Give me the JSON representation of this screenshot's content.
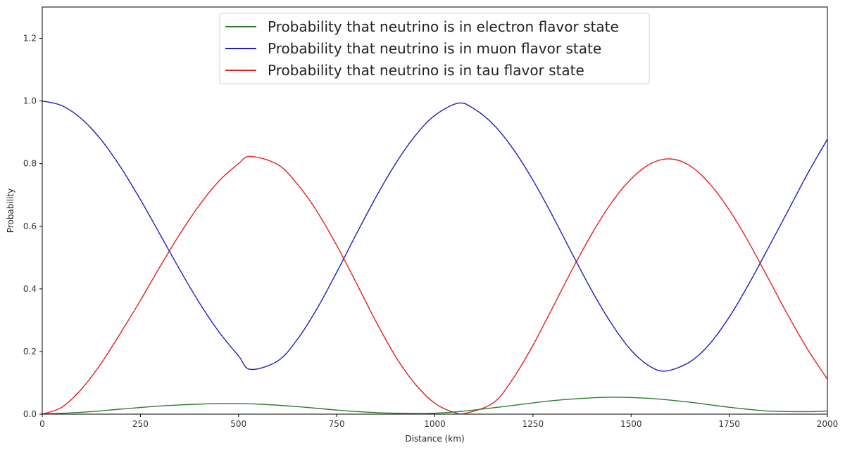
{
  "chart_data": {
    "type": "line",
    "title": "",
    "xlabel": "Distance (km)",
    "ylabel": "Probability",
    "xlim": [
      0,
      2000
    ],
    "ylim": [
      0,
      1.3
    ],
    "xticks": [
      0,
      250,
      500,
      750,
      1000,
      1250,
      1500,
      1750,
      2000
    ],
    "yticks": [
      0.0,
      0.2,
      0.4,
      0.6,
      0.8,
      1.0,
      1.2
    ],
    "ytick_labels": [
      "0.0",
      "0.2",
      "0.4",
      "0.6",
      "0.8",
      "1.0",
      "1.2"
    ],
    "grid": false,
    "legend_position": "top-center",
    "series": [
      {
        "name": "Probability that neutrino is in electron flavor state",
        "color": "#2e7d32",
        "x": [
          0,
          100,
          200,
          300,
          400,
          475,
          550,
          650,
          750,
          850,
          950,
          1000,
          1050,
          1100,
          1200,
          1300,
          1400,
          1460,
          1550,
          1650,
          1750,
          1850,
          1950,
          2000
        ],
        "y": [
          0.0,
          0.006,
          0.016,
          0.026,
          0.032,
          0.034,
          0.032,
          0.024,
          0.013,
          0.005,
          0.002,
          0.003,
          0.007,
          0.013,
          0.028,
          0.043,
          0.052,
          0.054,
          0.05,
          0.038,
          0.022,
          0.01,
          0.008,
          0.01
        ]
      },
      {
        "name": "Probability that neutrino is in muon flavor state",
        "color": "#1f1fbf",
        "x": [
          0,
          50,
          100,
          150,
          200,
          250,
          300,
          350,
          400,
          450,
          500,
          530,
          600,
          650,
          700,
          750,
          800,
          850,
          900,
          950,
          1000,
          1060,
          1100,
          1150,
          1200,
          1250,
          1300,
          1350,
          1400,
          1450,
          1500,
          1550,
          1590,
          1650,
          1700,
          1750,
          1800,
          1850,
          1900,
          1950,
          2000
        ],
        "y": [
          1.0,
          0.985,
          0.943,
          0.876,
          0.788,
          0.685,
          0.574,
          0.462,
          0.356,
          0.263,
          0.186,
          0.143,
          0.17,
          0.239,
          0.337,
          0.453,
          0.575,
          0.693,
          0.8,
          0.889,
          0.954,
          0.993,
          0.975,
          0.924,
          0.846,
          0.747,
          0.633,
          0.512,
          0.394,
          0.289,
          0.204,
          0.151,
          0.138,
          0.167,
          0.224,
          0.31,
          0.416,
          0.532,
          0.65,
          0.769,
          0.878
        ]
      },
      {
        "name": "Probability that neutrino is in tau flavor state",
        "color": "#e02020",
        "x": [
          0,
          50,
          100,
          150,
          200,
          250,
          300,
          350,
          400,
          450,
          500,
          530,
          600,
          650,
          700,
          750,
          800,
          850,
          900,
          950,
          1000,
          1050,
          1080,
          1150,
          1200,
          1250,
          1300,
          1350,
          1400,
          1450,
          1500,
          1550,
          1600,
          1650,
          1700,
          1750,
          1800,
          1850,
          1900,
          1950,
          2000
        ],
        "y": [
          0.0,
          0.022,
          0.08,
          0.162,
          0.26,
          0.363,
          0.471,
          0.574,
          0.667,
          0.744,
          0.8,
          0.823,
          0.797,
          0.734,
          0.647,
          0.539,
          0.419,
          0.296,
          0.184,
          0.096,
          0.035,
          0.005,
          0.003,
          0.037,
          0.115,
          0.22,
          0.34,
          0.462,
          0.576,
          0.675,
          0.751,
          0.8,
          0.815,
          0.793,
          0.736,
          0.652,
          0.548,
          0.432,
          0.315,
          0.206,
          0.112
        ]
      }
    ]
  }
}
